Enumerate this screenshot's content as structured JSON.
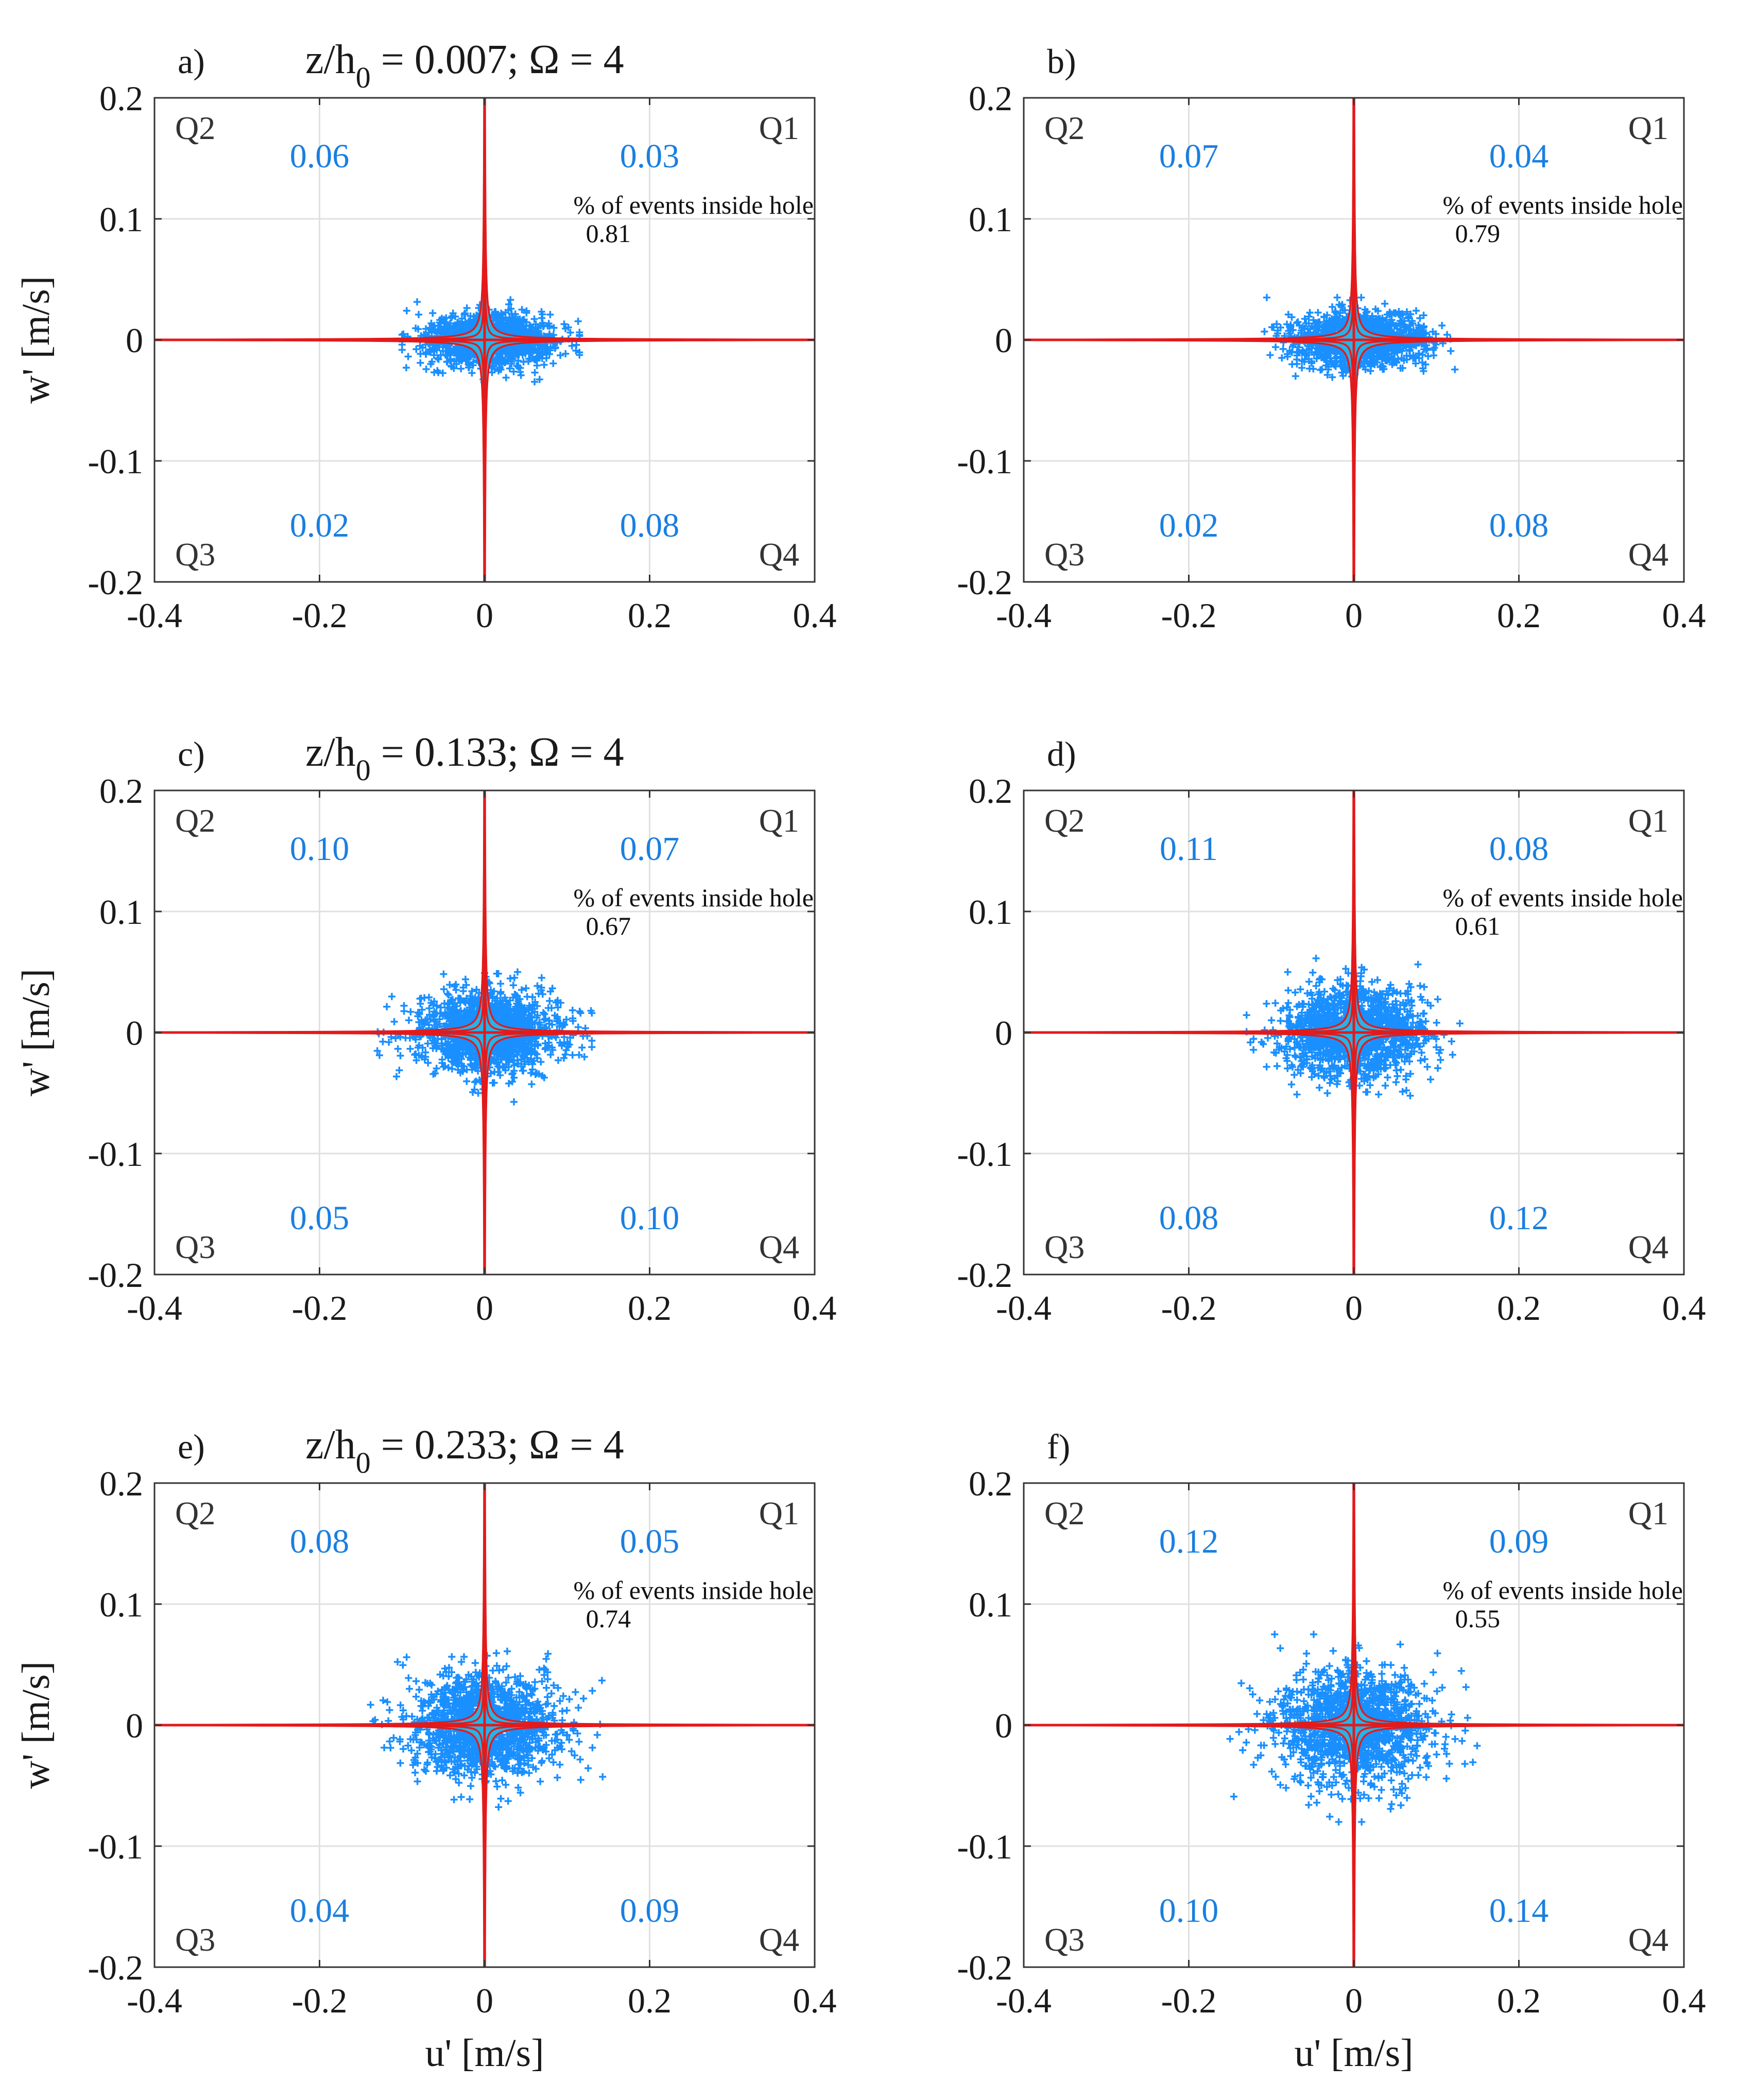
{
  "figure_title": "Quadrant analysis scatter plots",
  "colors": {
    "scatter": "#1a8fff",
    "hole_fill": "#27b7e6",
    "hyperbola": "#e31a1c",
    "quadrant_value": "#1a7fe0",
    "axes": "#333333",
    "grid": "#e0e0e0"
  },
  "chart_data": [
    {
      "type": "scatter",
      "panel_label": "a)",
      "title": {
        "prefix": "z/h",
        "sub": "0",
        "suffix": " = 0.007; Ω = 4"
      },
      "xlabel": "",
      "ylabel": "w' [m/s]",
      "xlim": [
        -0.4,
        0.4
      ],
      "ylim": [
        -0.2,
        0.2
      ],
      "xticks": [
        "-0.4",
        "-0.2",
        "0",
        "0.2",
        "0.4"
      ],
      "yticks": [
        "-0.2",
        "-0.1",
        "0",
        "0.1",
        "0.2"
      ],
      "grid": true,
      "quadrant_labels": {
        "q1": "Q1",
        "q2": "Q2",
        "q3": "Q3",
        "q4": "Q4"
      },
      "quadrant_values": {
        "q1": "0.03",
        "q2": "0.06",
        "q3": "0.02",
        "q4": "0.08"
      },
      "note_label": "% of events inside hole",
      "note_value": "0.81",
      "cloud": {
        "u_mean": 0.005,
        "u_std": 0.038,
        "w_mean": 0.0,
        "w_std": 0.011,
        "u_range": [
          -0.1,
          0.115
        ],
        "w_range": [
          -0.035,
          0.035
        ]
      }
    },
    {
      "type": "scatter",
      "panel_label": "b)",
      "title": null,
      "xlabel": "",
      "ylabel": "",
      "xlim": [
        -0.4,
        0.4
      ],
      "ylim": [
        -0.2,
        0.2
      ],
      "xticks": [
        "-0.4",
        "-0.2",
        "0",
        "0.2",
        "0.4"
      ],
      "yticks": [
        "-0.2",
        "-0.1",
        "0",
        "0.1",
        "0.2"
      ],
      "grid": true,
      "quadrant_labels": {
        "q1": "Q1",
        "q2": "Q2",
        "q3": "Q3",
        "q4": "Q4"
      },
      "quadrant_values": {
        "q1": "0.04",
        "q2": "0.07",
        "q3": "0.02",
        "q4": "0.08"
      },
      "note_label": "% of events inside hole",
      "note_value": "0.79",
      "cloud": {
        "u_mean": 0.005,
        "u_std": 0.04,
        "w_mean": 0.0,
        "w_std": 0.011,
        "u_range": [
          -0.11,
          0.13
        ],
        "w_range": [
          -0.035,
          0.035
        ]
      }
    },
    {
      "type": "scatter",
      "panel_label": "c)",
      "title": {
        "prefix": "z/h",
        "sub": "0",
        "suffix": " = 0.133; Ω = 4"
      },
      "xlabel": "",
      "ylabel": "w' [m/s]",
      "xlim": [
        -0.4,
        0.4
      ],
      "ylim": [
        -0.2,
        0.2
      ],
      "xticks": [
        "-0.4",
        "-0.2",
        "0",
        "0.2",
        "0.4"
      ],
      "yticks": [
        "-0.2",
        "-0.1",
        "0",
        "0.1",
        "0.2"
      ],
      "grid": true,
      "quadrant_labels": {
        "q1": "Q1",
        "q2": "Q2",
        "q3": "Q3",
        "q4": "Q4"
      },
      "quadrant_values": {
        "q1": "0.07",
        "q2": "0.10",
        "q3": "0.05",
        "q4": "0.10"
      },
      "note_label": "% of events inside hole",
      "note_value": "0.67",
      "cloud": {
        "u_mean": 0.005,
        "u_std": 0.042,
        "w_mean": 0.0,
        "w_std": 0.016,
        "u_range": [
          -0.13,
          0.13
        ],
        "w_range": [
          -0.065,
          0.05
        ]
      }
    },
    {
      "type": "scatter",
      "panel_label": "d)",
      "title": null,
      "xlabel": "",
      "ylabel": "",
      "xlim": [
        -0.4,
        0.4
      ],
      "ylim": [
        -0.2,
        0.2
      ],
      "xticks": [
        "-0.4",
        "-0.2",
        "0",
        "0.2",
        "0.4"
      ],
      "yticks": [
        "-0.2",
        "-0.1",
        "0",
        "0.1",
        "0.2"
      ],
      "grid": true,
      "quadrant_labels": {
        "q1": "Q1",
        "q2": "Q2",
        "q3": "Q3",
        "q4": "Q4"
      },
      "quadrant_values": {
        "q1": "0.08",
        "q2": "0.11",
        "q3": "0.08",
        "q4": "0.12"
      },
      "note_label": "% of events inside hole",
      "note_value": "0.61",
      "cloud": {
        "u_mean": 0.0,
        "u_std": 0.042,
        "w_mean": 0.0,
        "w_std": 0.019,
        "u_range": [
          -0.13,
          0.14
        ],
        "w_range": [
          -0.07,
          0.065
        ]
      }
    },
    {
      "type": "scatter",
      "panel_label": "e)",
      "title": {
        "prefix": "z/h",
        "sub": "0",
        "suffix": " = 0.233; Ω = 4"
      },
      "xlabel": "u' [m/s]",
      "ylabel": "w' [m/s]",
      "xlim": [
        -0.4,
        0.4
      ],
      "ylim": [
        -0.2,
        0.2
      ],
      "xticks": [
        "-0.4",
        "-0.2",
        "0",
        "0.2",
        "0.4"
      ],
      "yticks": [
        "-0.2",
        "-0.1",
        "0",
        "0.1",
        "0.2"
      ],
      "grid": true,
      "quadrant_labels": {
        "q1": "Q1",
        "q2": "Q2",
        "q3": "Q3",
        "q4": "Q4"
      },
      "quadrant_values": {
        "q1": "0.05",
        "q2": "0.08",
        "q3": "0.04",
        "q4": "0.09"
      },
      "note_label": "% of events inside hole",
      "note_value": "0.74",
      "cloud": {
        "u_mean": 0.0,
        "u_std": 0.045,
        "w_mean": 0.0,
        "w_std": 0.021,
        "u_range": [
          -0.15,
          0.15
        ],
        "w_range": [
          -0.075,
          0.07
        ]
      }
    },
    {
      "type": "scatter",
      "panel_label": "f)",
      "title": null,
      "xlabel": "u' [m/s]",
      "ylabel": "",
      "xlim": [
        -0.4,
        0.4
      ],
      "ylim": [
        -0.2,
        0.2
      ],
      "xticks": [
        "-0.4",
        "-0.2",
        "0",
        "0.2",
        "0.4"
      ],
      "yticks": [
        "-0.2",
        "-0.1",
        "0",
        "0.1",
        "0.2"
      ],
      "grid": true,
      "quadrant_labels": {
        "q1": "Q1",
        "q2": "Q2",
        "q3": "Q3",
        "q4": "Q4"
      },
      "quadrant_values": {
        "q1": "0.09",
        "q2": "0.12",
        "q3": "0.10",
        "q4": "0.14"
      },
      "note_label": "% of events inside hole",
      "note_value": "0.55",
      "cloud": {
        "u_mean": 0.0,
        "u_std": 0.045,
        "w_mean": 0.0,
        "w_std": 0.024,
        "u_range": [
          -0.15,
          0.16
        ],
        "w_range": [
          -0.08,
          0.075
        ]
      }
    }
  ]
}
